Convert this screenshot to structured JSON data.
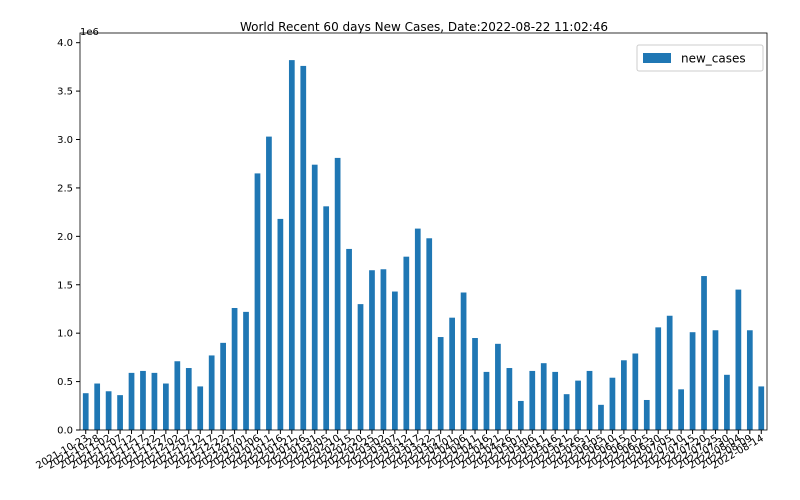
{
  "chart_data": {
    "type": "bar",
    "title": "World Recent 60 days New Cases, Date:2022-08-22 11:02:46",
    "y_offset_label": "1e6",
    "categories": [
      "2021-10-23",
      "2021-10-28",
      "2021-11-02",
      "2021-11-07",
      "2021-11-12",
      "2021-11-17",
      "2021-11-22",
      "2021-11-27",
      "2021-12-02",
      "2021-12-07",
      "2021-12-12",
      "2021-12-17",
      "2021-12-22",
      "2021-12-27",
      "2022-01-01",
      "2022-01-06",
      "2022-01-11",
      "2022-01-16",
      "2022-01-21",
      "2022-01-26",
      "2022-01-31",
      "2022-02-05",
      "2022-02-10",
      "2022-02-15",
      "2022-02-20",
      "2022-02-25",
      "2022-03-02",
      "2022-03-07",
      "2022-03-12",
      "2022-03-17",
      "2022-03-22",
      "2022-03-27",
      "2022-04-01",
      "2022-04-06",
      "2022-04-11",
      "2022-04-16",
      "2022-04-21",
      "2022-04-26",
      "2022-05-01",
      "2022-05-06",
      "2022-05-11",
      "2022-05-16",
      "2022-05-21",
      "2022-05-26",
      "2022-05-31",
      "2022-06-05",
      "2022-06-10",
      "2022-06-15",
      "2022-06-20",
      "2022-06-25",
      "2022-06-30",
      "2022-07-05",
      "2022-07-10",
      "2022-07-15",
      "2022-07-20",
      "2022-07-25",
      "2022-07-30",
      "2022-08-04",
      "2022-08-09",
      "2022-08-14"
    ],
    "series": [
      {
        "name": "new_cases",
        "color": "#1f77b4",
        "values": [
          0.38,
          0.48,
          0.4,
          0.36,
          0.59,
          0.61,
          0.59,
          0.48,
          0.71,
          0.64,
          0.45,
          0.77,
          0.9,
          1.26,
          1.22,
          2.65,
          3.03,
          2.18,
          3.82,
          3.76,
          2.74,
          2.31,
          2.81,
          1.87,
          1.3,
          1.65,
          1.66,
          1.43,
          1.79,
          2.08,
          1.98,
          0.96,
          1.16,
          1.42,
          0.95,
          0.6,
          0.89,
          0.64,
          0.3,
          0.61,
          0.69,
          0.6,
          0.37,
          0.51,
          0.61,
          0.26,
          0.54,
          0.72,
          0.79,
          0.31,
          1.06,
          1.18,
          0.42,
          1.01,
          1.59,
          1.03,
          0.57,
          1.45,
          1.03,
          0.45
        ]
      }
    ],
    "ylim": [
      0,
      4.1
    ],
    "yticks": [
      {
        "value": 0,
        "label": "0.0"
      },
      {
        "value": 0.5,
        "label": "0.5"
      },
      {
        "value": 1,
        "label": "1.0"
      },
      {
        "value": 1.5,
        "label": "1.5"
      },
      {
        "value": 2,
        "label": "2.0"
      },
      {
        "value": 2.5,
        "label": "2.5"
      },
      {
        "value": 3,
        "label": "3.0"
      },
      {
        "value": 3.5,
        "label": "3.5"
      },
      {
        "value": 4,
        "label": "4.0"
      }
    ],
    "legend": "upper right",
    "grid": false
  }
}
